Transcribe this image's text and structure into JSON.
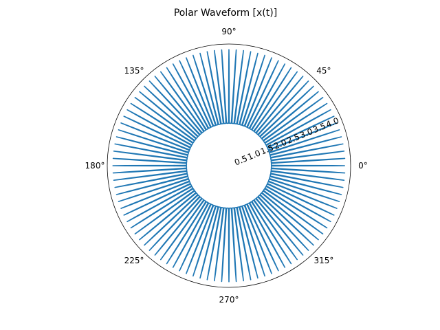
{
  "chart_data": {
    "type": "line",
    "projection": "polar",
    "title": "Polar Waveform [x(t)]",
    "angle_ticks": [
      {
        "deg": 0,
        "label": "0°"
      },
      {
        "deg": 45,
        "label": "45°"
      },
      {
        "deg": 90,
        "label": "90°"
      },
      {
        "deg": 135,
        "label": "135°"
      },
      {
        "deg": 180,
        "label": "180°"
      },
      {
        "deg": 225,
        "label": "225°"
      },
      {
        "deg": 270,
        "label": "270°"
      },
      {
        "deg": 315,
        "label": "315°"
      }
    ],
    "radial_ticks": [
      {
        "value": 0.5,
        "label": "0.5"
      },
      {
        "value": 1.0,
        "label": "1.0"
      },
      {
        "value": 1.5,
        "label": "1.5"
      },
      {
        "value": 2.0,
        "label": "2.0"
      },
      {
        "value": 2.5,
        "label": "2.5"
      },
      {
        "value": 3.0,
        "label": "3.0"
      },
      {
        "value": 3.5,
        "label": "3.5"
      },
      {
        "value": 4.0,
        "label": "4.0"
      }
    ],
    "rlim": [
      0,
      4.3
    ],
    "grid": false,
    "series": [
      {
        "color": "#1f77b4",
        "waveform": {
          "base_radius": 1.5,
          "amplitude": 2.6,
          "lobes": 100,
          "samples": 4000
        }
      }
    ]
  }
}
